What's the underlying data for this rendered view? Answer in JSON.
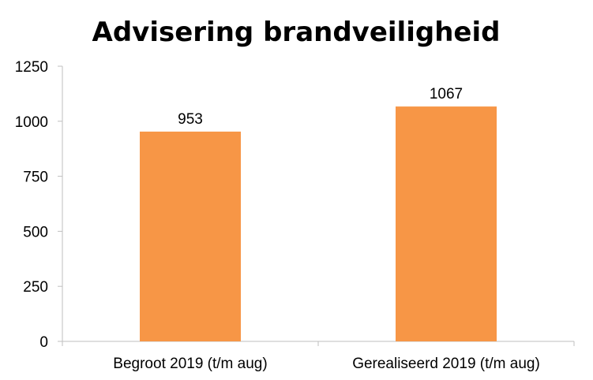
{
  "chart_data": {
    "type": "bar",
    "title": "Advisering brandveiligheid",
    "categories": [
      "Begroot 2019 (t/m aug)",
      "Gerealiseerd 2019 (t/m aug)"
    ],
    "values": [
      953,
      1067
    ],
    "data_labels": [
      "953",
      "1067"
    ],
    "ylim": [
      0,
      1250
    ],
    "yticks": [
      0,
      250,
      500,
      750,
      1000,
      1250
    ],
    "grid": false,
    "legend": "none",
    "bar_color": "#f79646",
    "xlabel": "",
    "ylabel": ""
  }
}
